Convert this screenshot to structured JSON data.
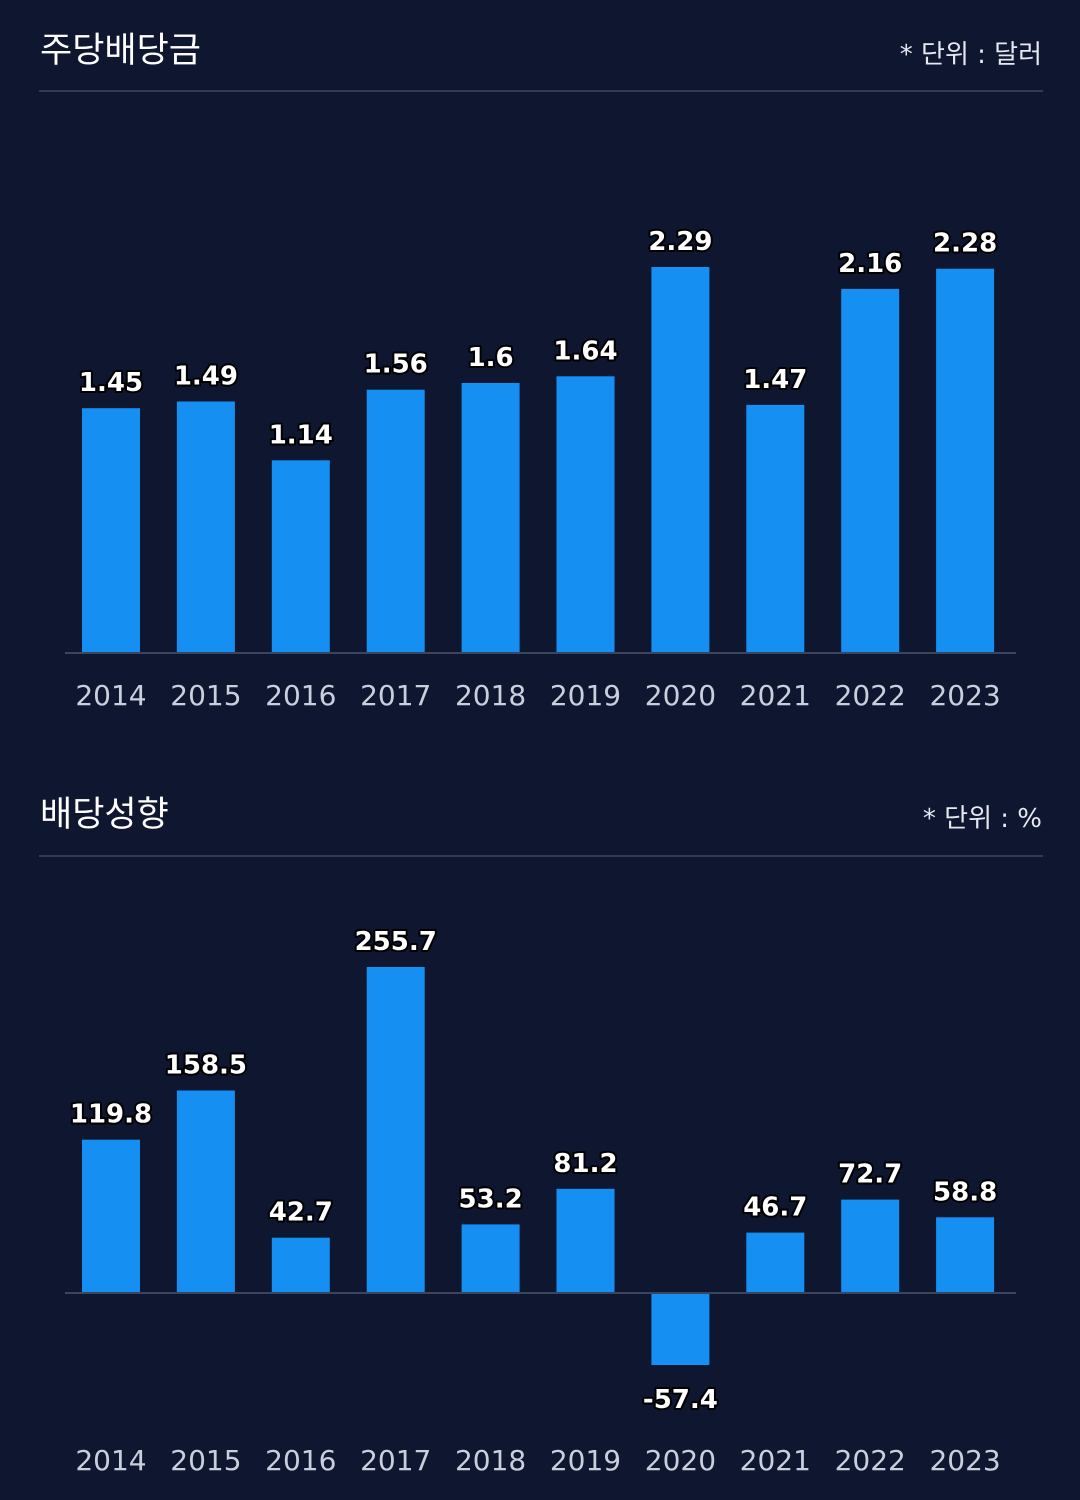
{
  "sections": [
    {
      "title": "주당배당금",
      "unit": "* 단위 : 달러"
    },
    {
      "title": "배당성향",
      "unit": "* 단위 : %"
    }
  ],
  "colors": {
    "background": "#0e1630",
    "bar": "#1590f2",
    "axis": "#3a4560",
    "divider": "#2f3a56"
  },
  "chart_data": [
    {
      "type": "bar",
      "title": "주당배당금",
      "unit": "* 단위 : 달러",
      "categories": [
        "2014",
        "2015",
        "2016",
        "2017",
        "2018",
        "2019",
        "2020",
        "2021",
        "2022",
        "2023"
      ],
      "values": [
        1.45,
        1.49,
        1.14,
        1.56,
        1.6,
        1.64,
        2.29,
        1.47,
        2.16,
        2.28
      ],
      "value_labels": [
        "1.45",
        "1.49",
        "1.14",
        "1.56",
        "1.6",
        "1.64",
        "2.29",
        "1.47",
        "2.16",
        "2.28"
      ],
      "ylim": [
        0,
        2.29
      ],
      "grid": false,
      "legend": "none"
    },
    {
      "type": "bar",
      "title": "배당성향",
      "unit": "* 단위 : %",
      "categories": [
        "2014",
        "2015",
        "2016",
        "2017",
        "2018",
        "2019",
        "2020",
        "2021",
        "2022",
        "2023"
      ],
      "values": [
        119.8,
        158.5,
        42.7,
        255.7,
        53.2,
        81.2,
        -57.4,
        46.7,
        72.7,
        58.8
      ],
      "value_labels": [
        "119.8",
        "158.5",
        "42.7",
        "255.7",
        "53.2",
        "81.2",
        "-57.4",
        "46.7",
        "72.7",
        "58.8"
      ],
      "ylim": [
        -57.4,
        255.7
      ],
      "grid": false,
      "legend": "none"
    }
  ]
}
